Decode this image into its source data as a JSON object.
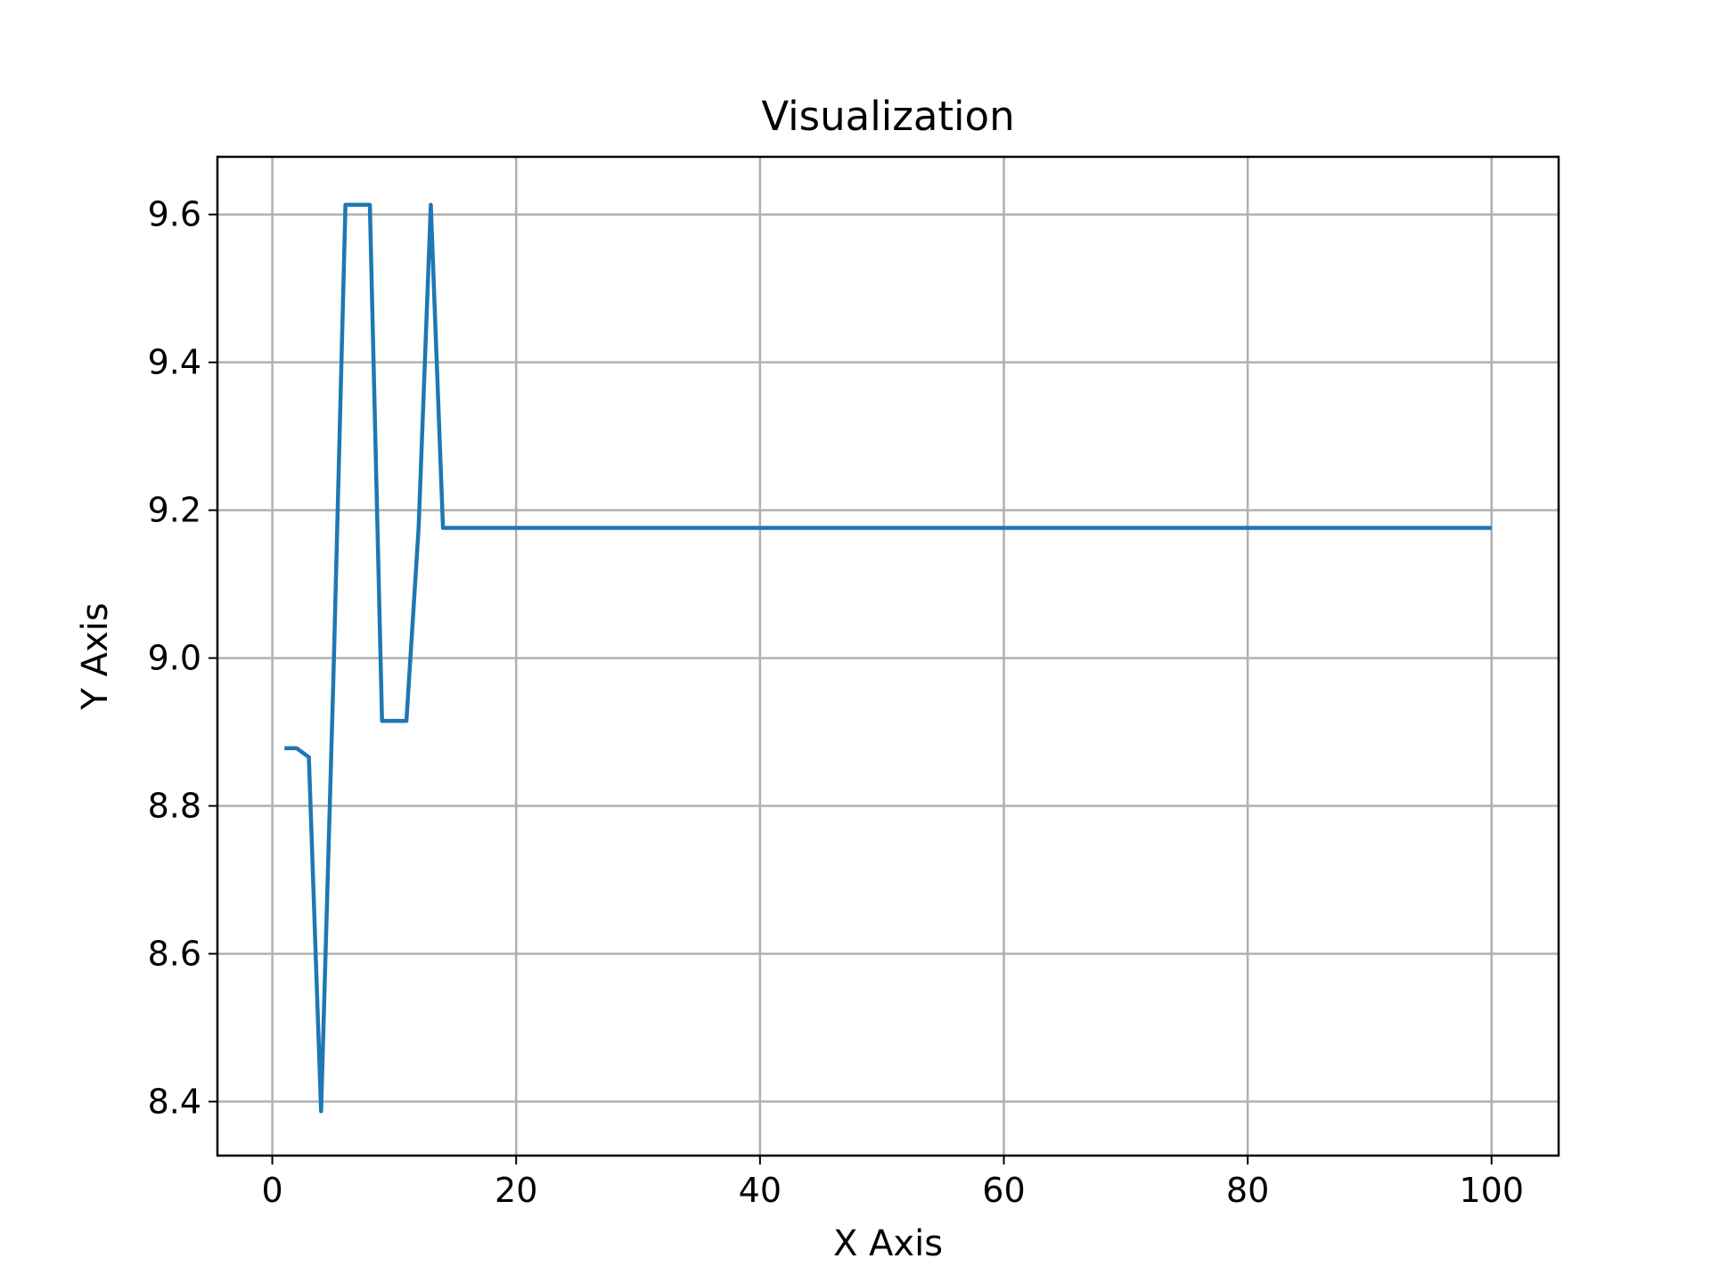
{
  "chart_data": {
    "type": "line",
    "title": "Visualization",
    "xlabel": "X Axis",
    "ylabel": "Y Axis",
    "xlim": [
      -4.5,
      105.5
    ],
    "ylim": [
      8.327,
      9.678
    ],
    "xticks": [
      0,
      20,
      40,
      60,
      80,
      100
    ],
    "yticks": [
      8.4,
      8.6,
      8.8,
      9.0,
      9.2,
      9.4,
      9.6
    ],
    "ytick_labels": [
      "8.4",
      "8.6",
      "8.8",
      "9.0",
      "9.2",
      "9.4",
      "9.6"
    ],
    "grid": true,
    "legend": "none",
    "series": [
      {
        "color": "#1f77b4",
        "x": [
          1,
          2,
          3,
          4,
          5,
          6,
          7,
          8,
          9,
          10,
          11,
          12,
          13,
          14,
          15,
          16,
          17,
          18,
          19,
          20,
          21,
          22,
          23,
          24,
          25,
          26,
          27,
          28,
          29,
          30,
          31,
          32,
          33,
          34,
          35,
          36,
          37,
          38,
          39,
          40,
          41,
          42,
          43,
          44,
          45,
          46,
          47,
          48,
          49,
          50,
          51,
          52,
          53,
          54,
          55,
          56,
          57,
          58,
          59,
          60,
          61,
          62,
          63,
          64,
          65,
          66,
          67,
          68,
          69,
          70,
          71,
          72,
          73,
          74,
          75,
          76,
          77,
          78,
          79,
          80,
          81,
          82,
          83,
          84,
          85,
          86,
          87,
          88,
          89,
          90,
          91,
          92,
          93,
          94,
          95,
          96,
          97,
          98,
          99,
          100
        ],
        "y": [
          8.878,
          8.878,
          8.866,
          8.387,
          8.966,
          9.613,
          9.613,
          9.613,
          8.915,
          8.915,
          8.915,
          9.176,
          9.613,
          9.176,
          9.176,
          9.176,
          9.176,
          9.176,
          9.176,
          9.176,
          9.176,
          9.176,
          9.176,
          9.176,
          9.176,
          9.176,
          9.176,
          9.176,
          9.176,
          9.176,
          9.176,
          9.176,
          9.176,
          9.176,
          9.176,
          9.176,
          9.176,
          9.176,
          9.176,
          9.176,
          9.176,
          9.176,
          9.176,
          9.176,
          9.176,
          9.176,
          9.176,
          9.176,
          9.176,
          9.176,
          9.176,
          9.176,
          9.176,
          9.176,
          9.176,
          9.176,
          9.176,
          9.176,
          9.176,
          9.176,
          9.176,
          9.176,
          9.176,
          9.176,
          9.176,
          9.176,
          9.176,
          9.176,
          9.176,
          9.176,
          9.176,
          9.176,
          9.176,
          9.176,
          9.176,
          9.176,
          9.176,
          9.176,
          9.176,
          9.176,
          9.176,
          9.176,
          9.176,
          9.176,
          9.176,
          9.176,
          9.176,
          9.176,
          9.176,
          9.176,
          9.176,
          9.176,
          9.176,
          9.176,
          9.176,
          9.176,
          9.176,
          9.176,
          9.176,
          9.176
        ]
      }
    ]
  }
}
